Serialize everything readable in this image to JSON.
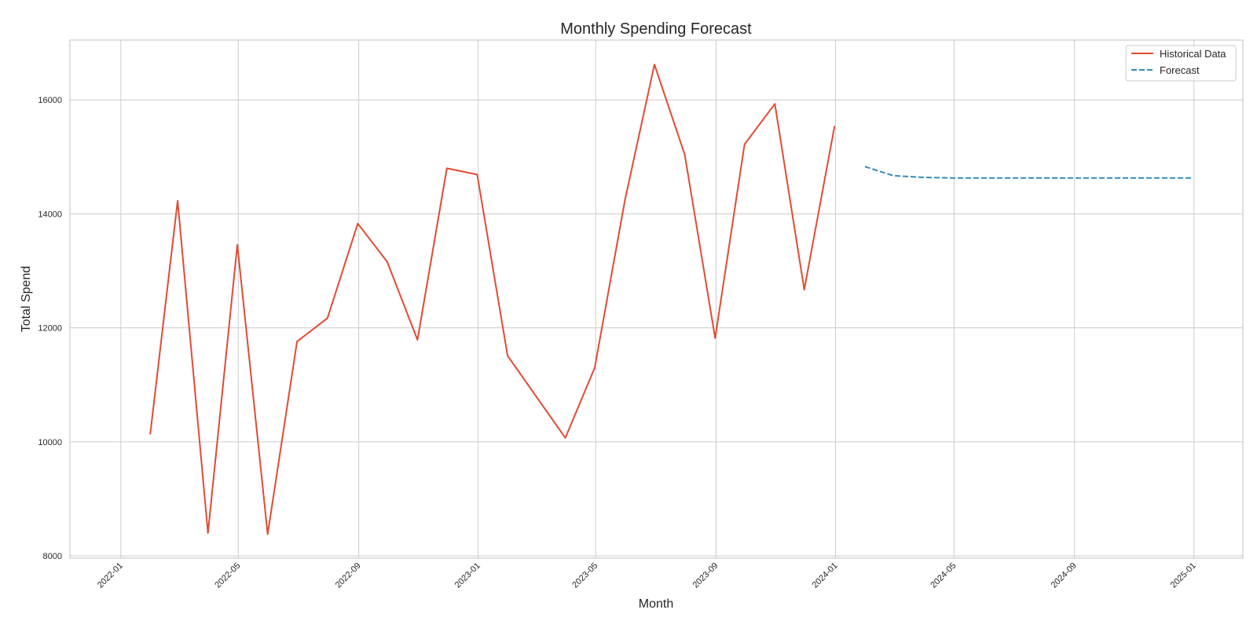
{
  "chart_data": {
    "type": "line",
    "title": "Monthly Spending Forecast",
    "xlabel": "Month",
    "ylabel": "Total Spend",
    "x_ticks": [
      "2022-01",
      "2022-05",
      "2022-09",
      "2023-01",
      "2023-05",
      "2023-09",
      "2024-01",
      "2024-05",
      "2024-09",
      "2025-01"
    ],
    "y_ticks": [
      8000,
      10000,
      12000,
      14000,
      16000
    ],
    "x_range": [
      "2021-11-10",
      "2025-02-20"
    ],
    "ylim": [
      7960,
      17050
    ],
    "grid": true,
    "legend_position": "top-right",
    "series": [
      {
        "name": "Historical Data",
        "color": "#e24a33",
        "line_style": "solid",
        "points": [
          [
            "2022-01-31",
            10130
          ],
          [
            "2022-02-28",
            14230
          ],
          [
            "2022-03-31",
            8400
          ],
          [
            "2022-04-30",
            13460
          ],
          [
            "2022-05-31",
            8380
          ],
          [
            "2022-06-30",
            11760
          ],
          [
            "2022-07-31",
            12170
          ],
          [
            "2022-08-31",
            13830
          ],
          [
            "2022-09-30",
            13160
          ],
          [
            "2022-10-31",
            11790
          ],
          [
            "2022-11-30",
            14800
          ],
          [
            "2022-12-31",
            14690
          ],
          [
            "2023-01-31",
            11510
          ],
          [
            "2023-03-31",
            10070
          ],
          [
            "2023-04-30",
            11300
          ],
          [
            "2023-05-31",
            14250
          ],
          [
            "2023-06-30",
            16620
          ],
          [
            "2023-07-31",
            15040
          ],
          [
            "2023-08-31",
            11820
          ],
          [
            "2023-09-30",
            15220
          ],
          [
            "2023-10-31",
            15930
          ],
          [
            "2023-11-30",
            12670
          ],
          [
            "2023-12-31",
            15540
          ]
        ]
      },
      {
        "name": "Forecast",
        "color": "#348abd",
        "line_style": "dashed",
        "points": [
          [
            "2024-01-31",
            14830
          ],
          [
            "2024-02-29",
            14670
          ],
          [
            "2024-03-31",
            14640
          ],
          [
            "2024-04-30",
            14630
          ],
          [
            "2024-05-31",
            14630
          ],
          [
            "2024-06-30",
            14630
          ],
          [
            "2024-07-31",
            14630
          ],
          [
            "2024-08-31",
            14630
          ],
          [
            "2024-09-30",
            14630
          ],
          [
            "2024-10-31",
            14630
          ],
          [
            "2024-11-30",
            14630
          ],
          [
            "2024-12-31",
            14630
          ]
        ]
      }
    ]
  }
}
